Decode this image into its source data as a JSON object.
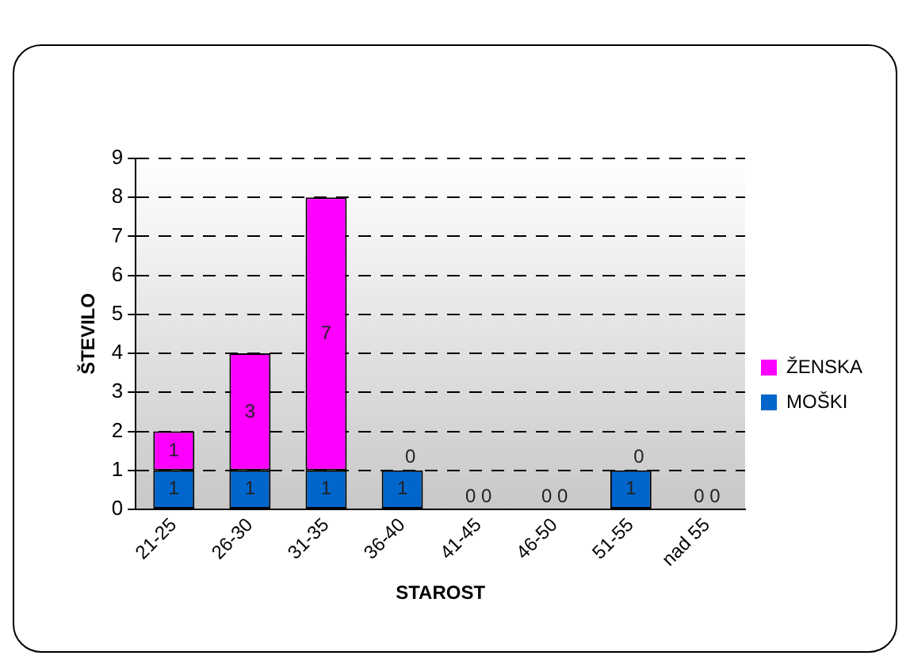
{
  "chart_data": {
    "type": "bar",
    "stacked": true,
    "xlabel": "STAROST",
    "ylabel": "ŠTEVILO",
    "categories": [
      "21-25",
      "26-30",
      "31-35",
      "36-40",
      "41-45",
      "46-50",
      "51-55",
      "nad 55"
    ],
    "series": [
      {
        "name": "MOŠKI",
        "color": "#0066cc",
        "values": [
          1,
          1,
          1,
          1,
          0,
          0,
          1,
          0
        ]
      },
      {
        "name": "ŽENSKA",
        "color": "#ff00ff",
        "values": [
          1,
          3,
          7,
          0,
          0,
          0,
          0,
          0
        ]
      }
    ],
    "ylim": [
      0,
      9
    ],
    "yticks": [
      0,
      1,
      2,
      3,
      4,
      5,
      6,
      7,
      8,
      9
    ],
    "grid": "y",
    "legend": "right",
    "data_labels": true
  }
}
